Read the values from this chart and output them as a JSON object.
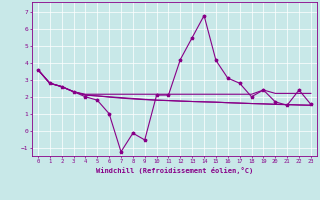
{
  "xlabel": "Windchill (Refroidissement éolien,°C)",
  "bg_color": "#c8e8e8",
  "line_color": "#880088",
  "grid_color": "#ffffff",
  "xlim": [
    -0.5,
    23.5
  ],
  "ylim": [
    -1.5,
    7.6
  ],
  "yticks": [
    -1,
    0,
    1,
    2,
    3,
    4,
    5,
    6,
    7
  ],
  "xticks": [
    0,
    1,
    2,
    3,
    4,
    5,
    6,
    7,
    8,
    9,
    10,
    11,
    12,
    13,
    14,
    15,
    16,
    17,
    18,
    19,
    20,
    21,
    22,
    23
  ],
  "series1_x": [
    0,
    1,
    2,
    3,
    4,
    5,
    6,
    7,
    8,
    9,
    10,
    11,
    12,
    13,
    14,
    15,
    16,
    17,
    18,
    19,
    20,
    21,
    22,
    23
  ],
  "series1_y": [
    3.6,
    2.8,
    2.6,
    2.3,
    2.0,
    1.8,
    1.0,
    -1.25,
    -0.15,
    -0.55,
    2.1,
    2.1,
    4.2,
    5.5,
    6.8,
    4.15,
    3.1,
    2.8,
    2.0,
    2.4,
    1.7,
    1.5,
    2.4,
    1.55
  ],
  "series2_y": [
    3.6,
    2.8,
    2.6,
    2.3,
    2.15,
    2.15,
    2.15,
    2.15,
    2.15,
    2.15,
    2.15,
    2.15,
    2.15,
    2.15,
    2.15,
    2.15,
    2.15,
    2.15,
    2.15,
    2.4,
    2.2,
    2.2,
    2.2,
    2.2
  ],
  "series3_y": [
    3.6,
    2.8,
    2.6,
    2.3,
    2.1,
    2.05,
    2.0,
    1.95,
    1.9,
    1.85,
    1.8,
    1.78,
    1.75,
    1.72,
    1.7,
    1.68,
    1.65,
    1.62,
    1.6,
    1.58,
    1.56,
    1.54,
    1.52,
    1.5
  ],
  "series4_y": [
    3.6,
    2.8,
    2.6,
    2.3,
    2.1,
    2.05,
    1.98,
    1.92,
    1.87,
    1.83,
    1.8,
    1.77,
    1.74,
    1.72,
    1.7,
    1.68,
    1.65,
    1.63,
    1.6,
    1.58,
    1.55,
    1.53,
    1.51,
    1.5
  ]
}
